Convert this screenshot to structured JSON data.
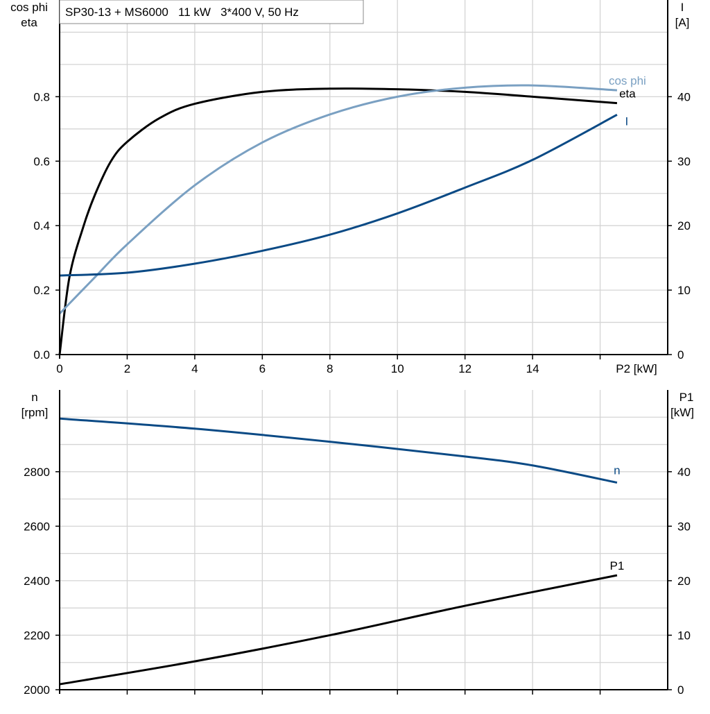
{
  "chart_data": [
    {
      "type": "line",
      "title": "SP30-13 + MS6000   11 kW   3*400 V, 50 Hz",
      "xlabel": "P2 [kW]",
      "ylabel_left": [
        "cos phi",
        "eta"
      ],
      "ylabel_right": [
        "I",
        "[A]"
      ],
      "xlim": [
        0,
        18
      ],
      "ylim_left": [
        0,
        1.1
      ],
      "ylim_right": [
        0,
        55
      ],
      "x_ticks": [
        "0",
        "2",
        "4",
        "6",
        "8",
        "10",
        "12",
        "14"
      ],
      "y_ticks_left": [
        "0.0",
        "0.2",
        "0.4",
        "0.6",
        "0.8"
      ],
      "y_ticks_right": [
        "0",
        "10",
        "20",
        "30",
        "40"
      ],
      "grid": true,
      "series": [
        {
          "name": "eta",
          "axis": "left",
          "color": "#000000",
          "x": [
            0,
            0.29,
            0.7,
            1.05,
            1.52,
            2,
            2.95,
            4,
            6,
            8,
            10,
            12,
            14,
            16.5
          ],
          "y": [
            0,
            0.24,
            0.396,
            0.497,
            0.6,
            0.66,
            0.733,
            0.778,
            0.815,
            0.825,
            0.823,
            0.815,
            0.8,
            0.78
          ]
        },
        {
          "name": "cos phi",
          "axis": "left",
          "color": "#7aa0c2",
          "x": [
            0,
            1,
            2,
            4,
            6,
            8,
            10,
            12,
            14,
            16.5
          ],
          "y": [
            0.127,
            0.235,
            0.342,
            0.525,
            0.658,
            0.745,
            0.8,
            0.828,
            0.835,
            0.82
          ]
        },
        {
          "name": "I",
          "axis": "right",
          "color": "#0b4a85",
          "x": [
            0,
            2,
            4,
            6,
            8,
            10,
            12,
            14,
            16.5
          ],
          "y": [
            12.26,
            12.7,
            14.1,
            16.1,
            18.6,
            21.9,
            25.9,
            30.2,
            37.2
          ]
        }
      ]
    },
    {
      "type": "line",
      "ylabel_left": [
        "n",
        "[rpm]"
      ],
      "ylabel_right": [
        "P1",
        "[kW]"
      ],
      "xlim": [
        0,
        18
      ],
      "ylim_left": [
        2000,
        3100
      ],
      "ylim_right": [
        0,
        55
      ],
      "y_ticks_left": [
        "2000",
        "2200",
        "2400",
        "2600",
        "2800"
      ],
      "y_ticks_right": [
        "0",
        "10",
        "20",
        "30",
        "40"
      ],
      "grid": true,
      "series": [
        {
          "name": "n",
          "axis": "left",
          "color": "#0b4a85",
          "x": [
            0,
            4,
            8,
            12,
            14,
            16.5
          ],
          "y": [
            2995,
            2958,
            2910,
            2856,
            2823,
            2760
          ]
        },
        {
          "name": "P1",
          "axis": "right",
          "color": "#000000",
          "x": [
            0,
            4,
            8,
            12,
            16.5
          ],
          "y": [
            1.0,
            5.2,
            10.0,
            15.4,
            21.0
          ]
        }
      ]
    }
  ]
}
